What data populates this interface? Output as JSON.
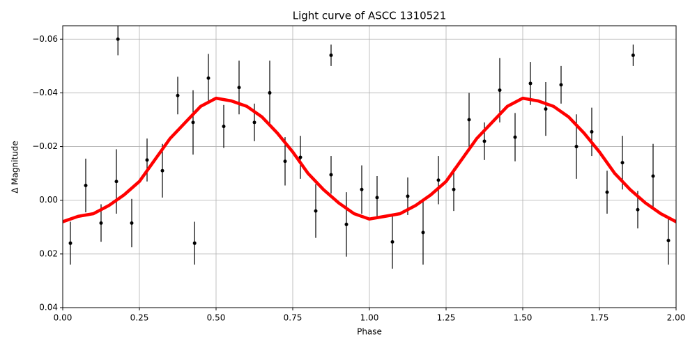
{
  "chart_data": {
    "type": "scatter",
    "title": "Light curve of ASCC 1310521",
    "x_label": "Phase",
    "y_label": "Δ Magnitude",
    "xlim": [
      0,
      2
    ],
    "ylim": [
      0.04,
      -0.065
    ],
    "grid": true,
    "xticks": [
      {
        "value": 0,
        "label": "0.00"
      },
      0.25,
      {
        "value": 0.5,
        "label": "0.50"
      },
      0.75,
      {
        "value": 1,
        "label": "1.00"
      },
      1.25,
      {
        "value": 1.5,
        "label": "1.50"
      },
      1.75,
      {
        "value": 2,
        "label": "2.00"
      }
    ],
    "yticks": [
      {
        "value": -0.06,
        "label": "−0.06"
      },
      {
        "value": -0.04,
        "label": "−0.04"
      },
      {
        "value": -0.02,
        "label": "−0.02"
      },
      {
        "value": 0,
        "label": "0.00"
      },
      0.02,
      0.04
    ],
    "series": [
      {
        "type": "errorbar",
        "color": "#000000",
        "x": [
          0.025,
          0.075,
          0.125,
          0.175,
          0.225,
          0.275,
          0.325,
          0.375,
          0.425,
          0.475,
          0.525,
          0.575,
          0.625,
          0.675,
          0.725,
          0.775,
          0.825,
          0.875,
          0.925,
          0.975,
          1.025,
          1.075,
          1.125,
          1.175,
          1.225,
          1.275,
          1.325,
          1.375,
          1.425,
          1.475,
          1.525,
          1.575,
          1.625,
          1.675,
          1.725,
          1.775,
          1.825,
          1.875,
          1.925,
          1.975,
          0.18,
          0.875,
          1.86,
          0.43
        ],
        "values": [
          0.016,
          -0.0055,
          0.0085,
          -0.007,
          0.0085,
          -0.015,
          -0.011,
          -0.039,
          -0.029,
          -0.0455,
          -0.0275,
          -0.042,
          -0.029,
          -0.04,
          -0.0145,
          -0.016,
          0.004,
          -0.0095,
          0.009,
          -0.004,
          -0.001,
          0.0155,
          -0.0015,
          0.012,
          -0.0075,
          -0.004,
          -0.03,
          -0.022,
          -0.041,
          -0.0235,
          -0.0435,
          -0.034,
          -0.043,
          -0.02,
          -0.0255,
          -0.003,
          -0.014,
          0.0035,
          -0.009,
          0.015,
          -0.06,
          -0.054,
          -0.054,
          0.016
        ],
        "errors": [
          0.008,
          0.01,
          0.007,
          0.012,
          0.009,
          0.008,
          0.01,
          0.007,
          0.012,
          0.009,
          0.008,
          0.01,
          0.007,
          0.012,
          0.009,
          0.008,
          0.01,
          0.007,
          0.012,
          0.009,
          0.008,
          0.01,
          0.007,
          0.012,
          0.009,
          0.008,
          0.01,
          0.007,
          0.012,
          0.009,
          0.008,
          0.01,
          0.007,
          0.012,
          0.009,
          0.008,
          0.01,
          0.007,
          0.012,
          0.009,
          0.006,
          0.004,
          0.004,
          0.008
        ]
      },
      {
        "type": "line",
        "color": "#ff0000",
        "x": [
          0,
          0.05,
          0.1,
          0.15,
          0.2,
          0.25,
          0.3,
          0.35,
          0.4,
          0.45,
          0.5,
          0.55,
          0.6,
          0.65,
          0.7,
          0.75,
          0.8,
          0.85,
          0.9,
          0.95,
          1,
          1.05,
          1.1,
          1.15,
          1.2,
          1.25,
          1.3,
          1.35,
          1.4,
          1.45,
          1.5,
          1.55,
          1.6,
          1.65,
          1.7,
          1.75,
          1.8,
          1.85,
          1.9,
          1.95,
          2
        ],
        "values": [
          0.008,
          0.006,
          0.005,
          0.002,
          -0.002,
          -0.007,
          -0.015,
          -0.023,
          -0.029,
          -0.035,
          -0.038,
          -0.037,
          -0.035,
          -0.031,
          -0.025,
          -0.018,
          -0.01,
          -0.004,
          0.001,
          0.005,
          0.007,
          0.006,
          0.005,
          0.002,
          -0.002,
          -0.007,
          -0.015,
          -0.023,
          -0.029,
          -0.035,
          -0.038,
          -0.037,
          -0.035,
          -0.031,
          -0.025,
          -0.018,
          -0.01,
          -0.004,
          0.001,
          0.005,
          0.008
        ]
      }
    ]
  }
}
